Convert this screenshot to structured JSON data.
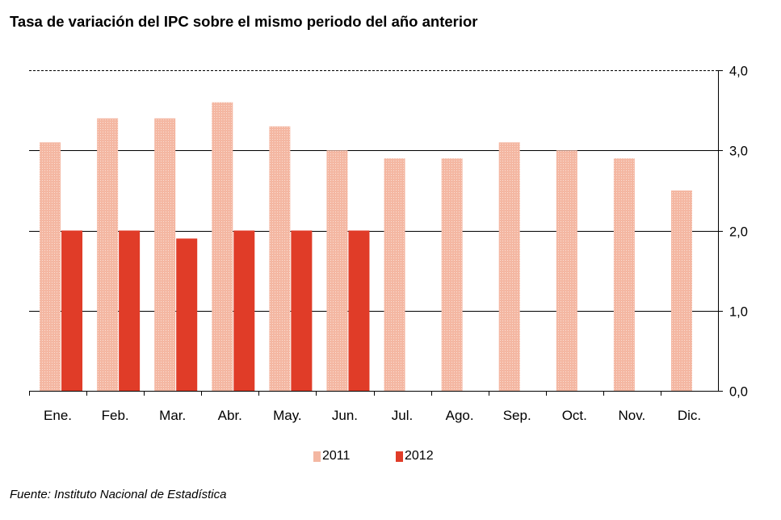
{
  "colors": {
    "series_2011": "#f4b7a2",
    "series_2011_dots": "#ffffff",
    "series_2012": "#e03c28",
    "grid": "#000000"
  },
  "chart_data": {
    "type": "bar",
    "title": "Tasa de variación del IPC sobre el mismo periodo del año anterior",
    "xlabel": "",
    "ylabel": "",
    "ylim": [
      0,
      4
    ],
    "y_ticks": [
      "0,0",
      "1,0",
      "2,0",
      "3,0",
      "4,0"
    ],
    "y_axis_side": "right",
    "grid": true,
    "legend_placement": "bottom",
    "categories": [
      "Ene.",
      "Feb.",
      "Mar.",
      "Abr.",
      "May.",
      "Jun.",
      "Jul.",
      "Ago.",
      "Sep.",
      "Oct.",
      "Nov.",
      "Dic."
    ],
    "series": [
      {
        "name": "2011",
        "values": [
          3.1,
          3.4,
          3.4,
          3.6,
          3.3,
          3.0,
          2.9,
          2.9,
          3.1,
          3.0,
          2.9,
          2.5
        ]
      },
      {
        "name": "2012",
        "values": [
          2.0,
          2.0,
          1.9,
          2.0,
          2.0,
          2.0,
          null,
          null,
          null,
          null,
          null,
          null
        ]
      }
    ],
    "source": "Fuente: Instituto Nacional de Estadística"
  }
}
